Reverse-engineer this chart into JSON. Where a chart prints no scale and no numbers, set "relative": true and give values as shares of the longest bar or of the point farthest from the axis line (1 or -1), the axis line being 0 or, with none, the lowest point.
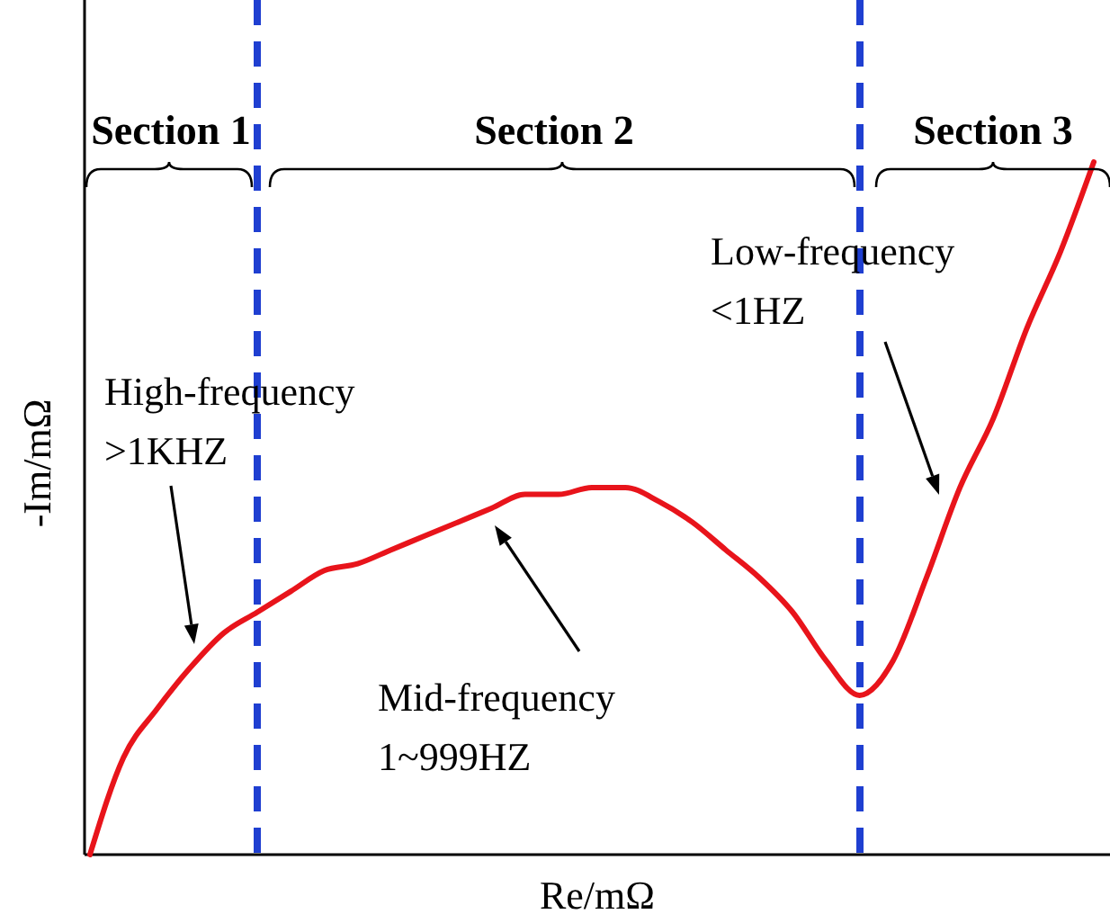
{
  "chart_data": {
    "type": "line",
    "relative": true,
    "xlabel": "Re/mΩ",
    "ylabel": "-Im/mΩ",
    "categories": [
      null,
      null,
      null,
      null,
      null,
      null,
      null,
      null,
      null,
      null,
      null,
      null,
      null,
      null,
      null,
      null,
      null,
      null,
      null,
      null,
      null,
      null,
      null,
      null,
      null,
      null,
      null,
      null,
      null,
      null,
      null
    ],
    "series": [
      {
        "color": "#e8141b",
        "values": [
          0,
          0.14,
          0.21,
          0.27,
          0.32,
          0.35,
          0.38,
          0.41,
          0.42,
          0.44,
          0.46,
          0.48,
          0.5,
          0.52,
          0.52,
          0.53,
          0.53,
          0.51,
          0.48,
          0.44,
          0.4,
          0.35,
          0.28,
          0.23,
          0.28,
          0.4,
          0.53,
          0.63,
          0.76,
          0.87,
          1
        ]
      }
    ],
    "annotations": [
      "Section 1",
      "Section 2",
      "Section 3",
      "High-frequency\n>1KHZ",
      "Mid-frequency\n1~999HZ",
      "Low-frequency\n<1HZ"
    ],
    "tick_labels": false
  }
}
